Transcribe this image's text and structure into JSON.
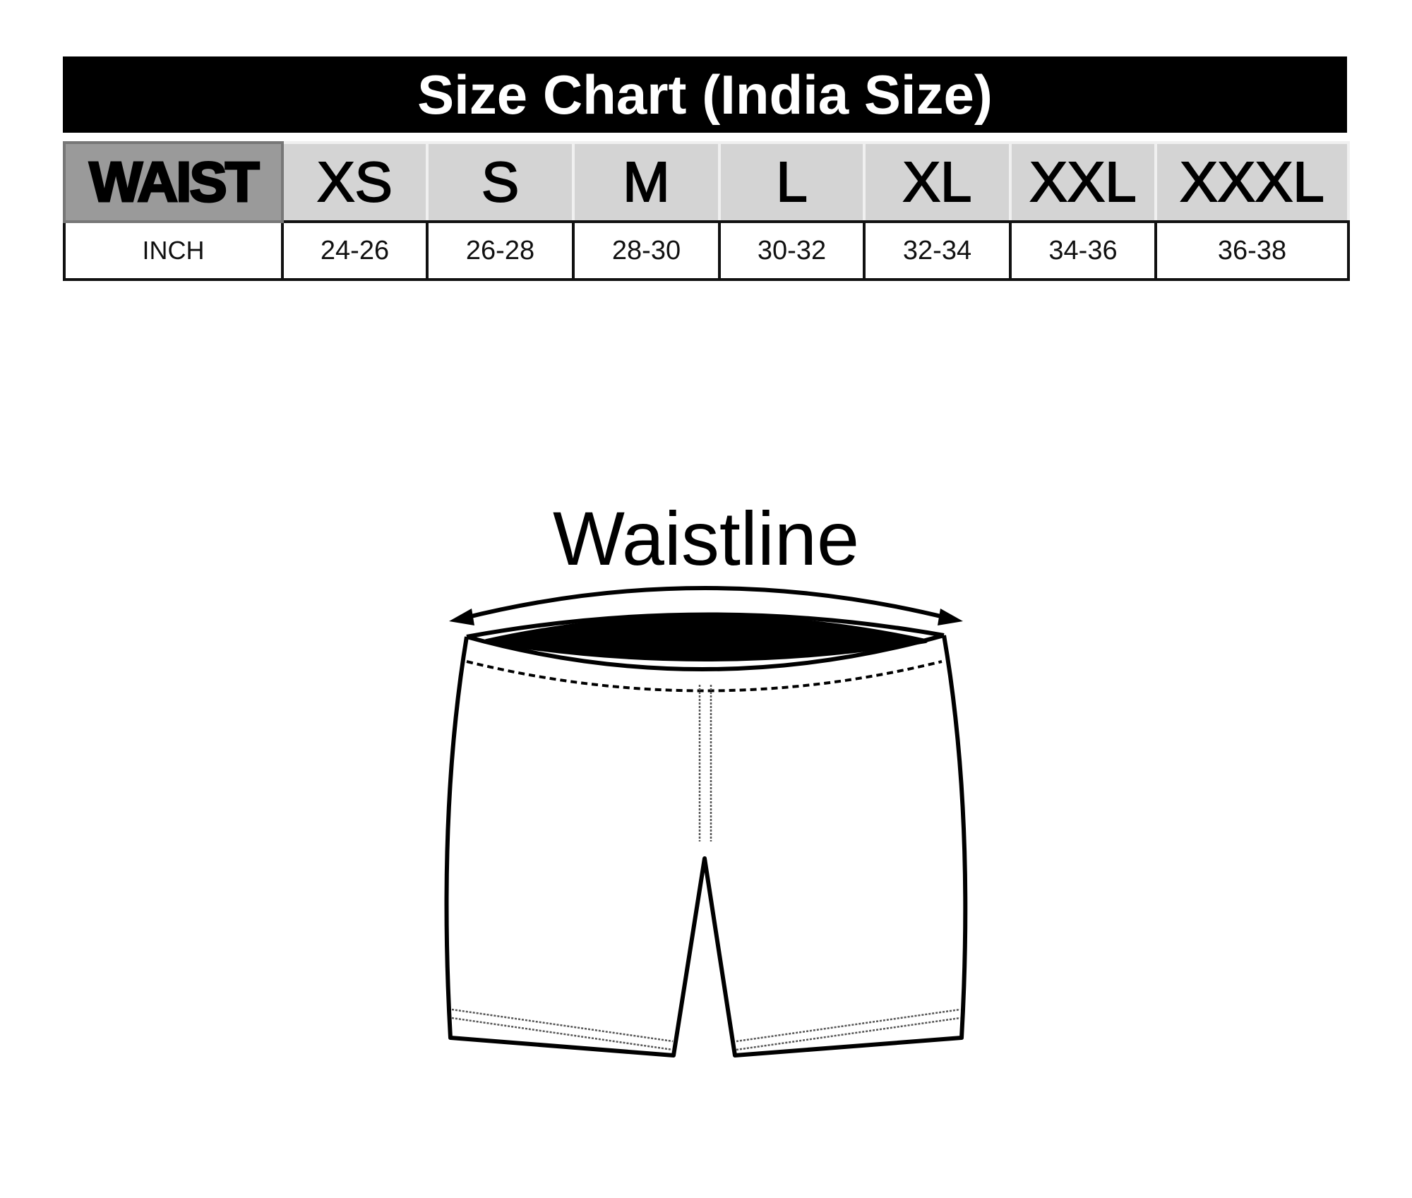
{
  "title": "Size Chart (India Size)",
  "table": {
    "header": [
      "WAIST",
      "XS",
      "S",
      "M",
      "L",
      "XL",
      "XXL",
      "XXXL"
    ],
    "row": [
      "INCH",
      "24-26",
      "26-28",
      "28-30",
      "30-32",
      "32-34",
      "34-36",
      "36-38"
    ]
  },
  "diagram": {
    "label": "Waistline",
    "illustration": "shorts-icon"
  },
  "colors": {
    "title_bg": "#000000",
    "header_label_bg": "#9a9a9a",
    "header_size_bg": "#d4d4d4"
  }
}
